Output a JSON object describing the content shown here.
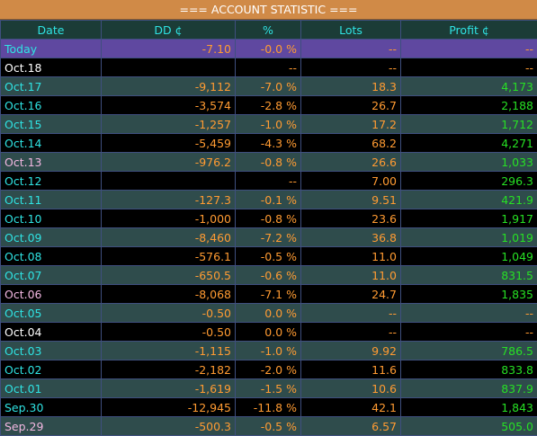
{
  "header": {
    "title": "=== ACCOUNT STATISTIC ==="
  },
  "columns": [
    "Date",
    "DD ¢",
    "%",
    "Lots",
    "Profit ¢"
  ],
  "rows": [
    {
      "date": "Today",
      "dd": "-7.10",
      "pct": "-0.0 %",
      "lots": "--",
      "profit": "--",
      "style": "today",
      "date_color": "cyan",
      "profit_color": "orange"
    },
    {
      "date": "Oct.18",
      "dd": "",
      "pct": "--",
      "lots": "--",
      "profit": "--",
      "style": "norm",
      "date_color": "white",
      "profit_color": "orange"
    },
    {
      "date": "Oct.17",
      "dd": "-9,112",
      "pct": "-7.0 %",
      "lots": "18.3",
      "profit": "4,173",
      "style": "alt",
      "date_color": "cyan",
      "profit_color": "green"
    },
    {
      "date": "Oct.16",
      "dd": "-3,574",
      "pct": "-2.8 %",
      "lots": "26.7",
      "profit": "2,188",
      "style": "norm",
      "date_color": "cyan",
      "profit_color": "green"
    },
    {
      "date": "Oct.15",
      "dd": "-1,257",
      "pct": "-1.0 %",
      "lots": "17.2",
      "profit": "1,712",
      "style": "alt",
      "date_color": "cyan",
      "profit_color": "green"
    },
    {
      "date": "Oct.14",
      "dd": "-5,459",
      "pct": "-4.3 %",
      "lots": "68.2",
      "profit": "4,271",
      "style": "norm",
      "date_color": "cyan",
      "profit_color": "green"
    },
    {
      "date": "Oct.13",
      "dd": "-976.2",
      "pct": "-0.8 %",
      "lots": "26.6",
      "profit": "1,033",
      "style": "alt",
      "date_color": "pink",
      "profit_color": "green"
    },
    {
      "date": "Oct.12",
      "dd": "",
      "pct": "--",
      "lots": "7.00",
      "profit": "296.3",
      "style": "norm",
      "date_color": "cyan",
      "profit_color": "green"
    },
    {
      "date": "Oct.11",
      "dd": "-127.3",
      "pct": "-0.1 %",
      "lots": "9.51",
      "profit": "421.9",
      "style": "alt",
      "date_color": "cyan",
      "profit_color": "green"
    },
    {
      "date": "Oct.10",
      "dd": "-1,000",
      "pct": "-0.8 %",
      "lots": "23.6",
      "profit": "1,917",
      "style": "norm",
      "date_color": "cyan",
      "profit_color": "green"
    },
    {
      "date": "Oct.09",
      "dd": "-8,460",
      "pct": "-7.2 %",
      "lots": "36.8",
      "profit": "1,019",
      "style": "alt",
      "date_color": "cyan",
      "profit_color": "green"
    },
    {
      "date": "Oct.08",
      "dd": "-576.1",
      "pct": "-0.5 %",
      "lots": "11.0",
      "profit": "1,049",
      "style": "norm",
      "date_color": "cyan",
      "profit_color": "green"
    },
    {
      "date": "Oct.07",
      "dd": "-650.5",
      "pct": "-0.6 %",
      "lots": "11.0",
      "profit": "831.5",
      "style": "alt",
      "date_color": "cyan",
      "profit_color": "green"
    },
    {
      "date": "Oct.06",
      "dd": "-8,068",
      "pct": "-7.1 %",
      "lots": "24.7",
      "profit": "1,835",
      "style": "norm",
      "date_color": "pink",
      "profit_color": "green"
    },
    {
      "date": "Oct.05",
      "dd": "-0.50",
      "pct": "0.0 %",
      "lots": "--",
      "profit": "--",
      "style": "alt",
      "date_color": "cyan",
      "profit_color": "orange"
    },
    {
      "date": "Oct.04",
      "dd": "-0.50",
      "pct": "0.0 %",
      "lots": "--",
      "profit": "--",
      "style": "norm",
      "date_color": "white",
      "profit_color": "orange"
    },
    {
      "date": "Oct.03",
      "dd": "-1,115",
      "pct": "-1.0 %",
      "lots": "9.92",
      "profit": "786.5",
      "style": "alt",
      "date_color": "cyan",
      "profit_color": "green"
    },
    {
      "date": "Oct.02",
      "dd": "-2,182",
      "pct": "-2.0 %",
      "lots": "11.6",
      "profit": "833.8",
      "style": "norm",
      "date_color": "cyan",
      "profit_color": "green"
    },
    {
      "date": "Oct.01",
      "dd": "-1,619",
      "pct": "-1.5 %",
      "lots": "10.6",
      "profit": "837.9",
      "style": "alt",
      "date_color": "cyan",
      "profit_color": "green"
    },
    {
      "date": "Sep.30",
      "dd": "-12,945",
      "pct": "-11.8 %",
      "lots": "42.1",
      "profit": "1,843",
      "style": "norm",
      "date_color": "cyan",
      "profit_color": "green"
    },
    {
      "date": "Sep.29",
      "dd": "-500.3",
      "pct": "-0.5 %",
      "lots": "6.57",
      "profit": "505.0",
      "style": "alt",
      "date_color": "pink",
      "profit_color": "green"
    }
  ],
  "colors": {
    "header_bg": "#d08a47",
    "today_bg": "#5f48a0",
    "alt_bg": "#2f4c4c",
    "orange": "#ff9b32",
    "green": "#27e024",
    "cyan": "#2fe3e3"
  }
}
